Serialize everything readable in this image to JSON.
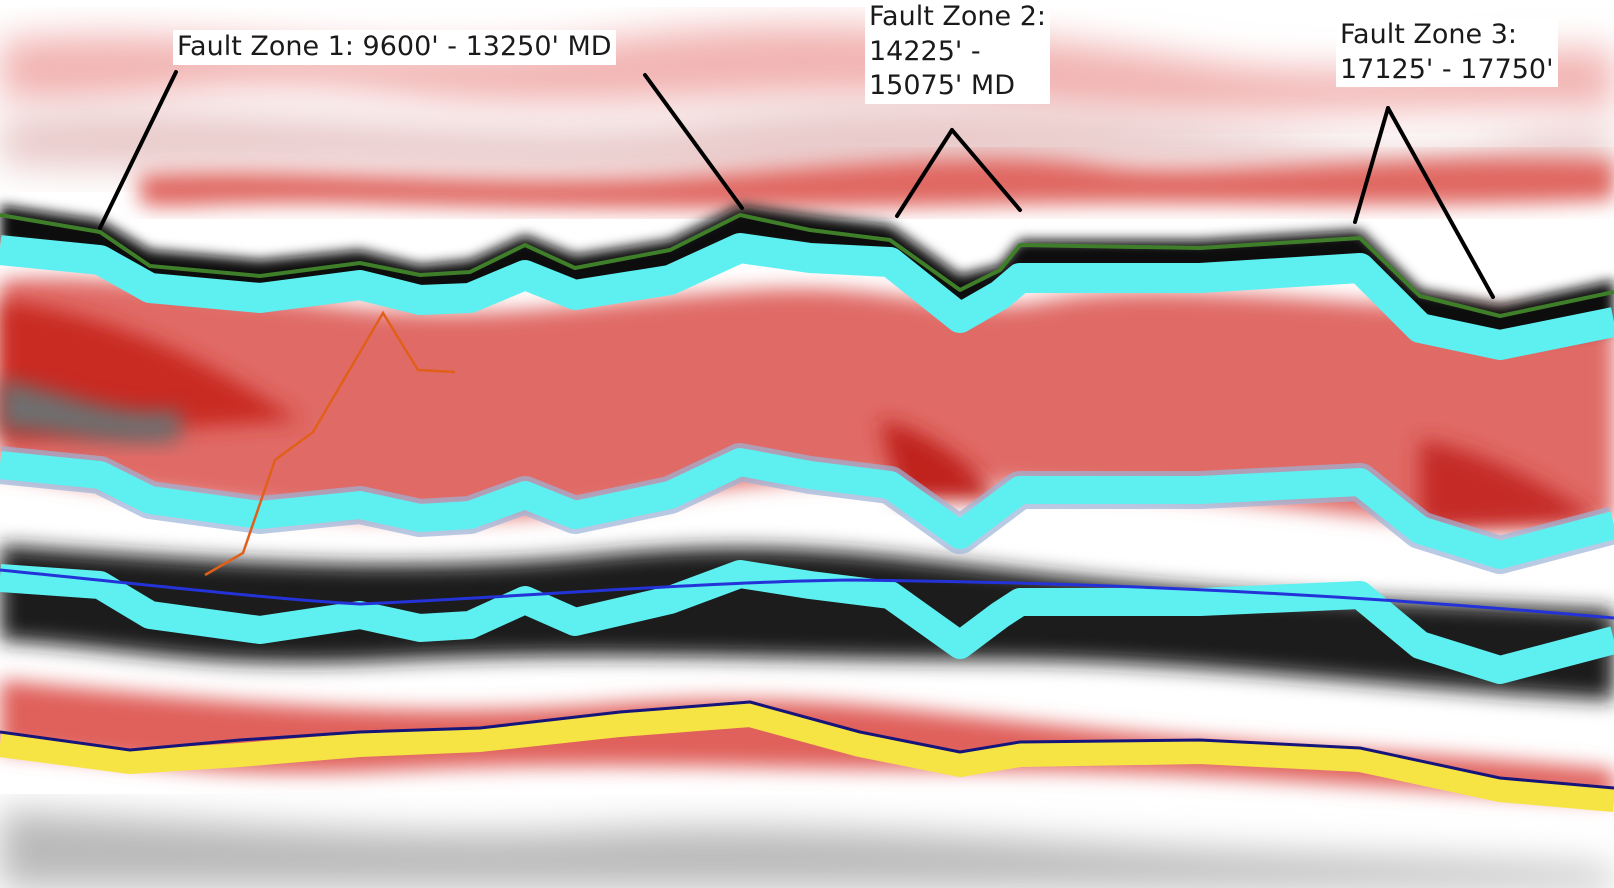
{
  "image": {
    "description_colors": {
      "positive_amplitude": "#c8201c",
      "negative_amplitude": "#0c0c0c",
      "horizon_cyan": "#5ef0f0",
      "horizon_yellow": "#f6e445",
      "horizon_navy": "#15157a",
      "horizon_green": "#3f7f2a",
      "well_path_blue": "#2433d8",
      "orange_trace": "#e0601a",
      "leader_line": "#000000",
      "label_background": "#ffffff"
    }
  },
  "annotations": {
    "fault_zone_1": {
      "lines": [
        "Fault Zone 1: 9600' - 13250' MD"
      ]
    },
    "fault_zone_2": {
      "lines": [
        "Fault Zone 2:",
        "14225' -",
        "15075' MD"
      ]
    },
    "fault_zone_3": {
      "lines": [
        "Fault Zone 3:",
        "17125' - 17750'"
      ]
    }
  }
}
